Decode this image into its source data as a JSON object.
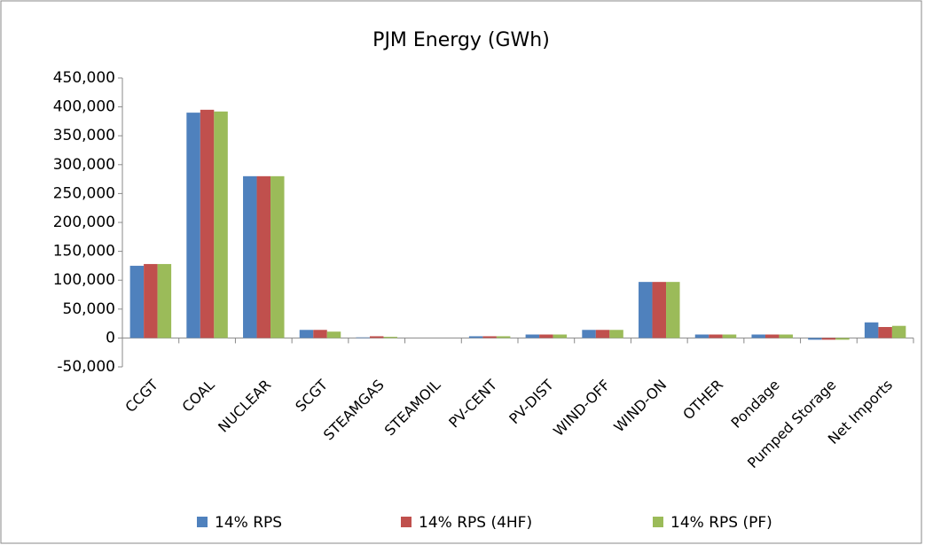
{
  "chart_data": {
    "type": "bar",
    "title": "PJM Energy (GWh)",
    "categories": [
      "CCGT",
      "COAL",
      "NUCLEAR",
      "SCGT",
      "STEAMGAS",
      "STEAMOIL",
      "PV-CENT",
      "PV-DIST",
      "WIND-OFF",
      "WIND-ON",
      "OTHER",
      "Pondage",
      "Pumped Storage",
      "Net Imports"
    ],
    "series": [
      {
        "name": "14% RPS",
        "color": "#4f81bd",
        "values": [
          125000,
          390000,
          280000,
          14000,
          1000,
          0,
          3000,
          6000,
          14000,
          97000,
          6000,
          6000,
          -3000,
          27000
        ]
      },
      {
        "name": "14% RPS (4HF)",
        "color": "#c0504d",
        "values": [
          128000,
          395000,
          280000,
          14000,
          3000,
          0,
          3000,
          6000,
          14000,
          97000,
          6000,
          6000,
          -3000,
          19000
        ]
      },
      {
        "name": "14% RPS (PF)",
        "color": "#9bbb59",
        "values": [
          128000,
          392000,
          280000,
          11000,
          2000,
          0,
          3000,
          6000,
          14000,
          97000,
          6000,
          6000,
          -3000,
          21000
        ]
      }
    ],
    "ylim": [
      -50000,
      450000
    ],
    "yticks": [
      {
        "value": -50000,
        "label": "-50,000"
      },
      0,
      {
        "value": 50000,
        "label": "50,000"
      },
      {
        "value": 100000,
        "label": "100,000"
      },
      {
        "value": 150000,
        "label": "150,000"
      },
      {
        "value": 200000,
        "label": "200,000"
      },
      {
        "value": 250000,
        "label": "250,000"
      },
      {
        "value": 300000,
        "label": "300,000"
      },
      {
        "value": 350000,
        "label": "350,000"
      },
      {
        "value": 400000,
        "label": "400,000"
      },
      {
        "value": 450000,
        "label": "450,000"
      }
    ],
    "grid": false,
    "legend": "bottom"
  }
}
